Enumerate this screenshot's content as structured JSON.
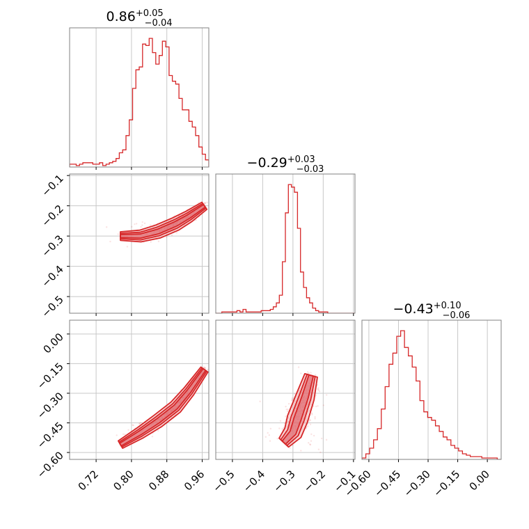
{
  "chart_data": {
    "type": "corner",
    "color": "#d62728",
    "fill_color": "#f2b6b8",
    "grid": true,
    "parameters": [
      {
        "median": "0.86",
        "plus": "+0.05",
        "minus": "−0.04",
        "range": [
          0.66,
          0.975
        ],
        "ticks": [
          0.72,
          0.8,
          0.88,
          0.96
        ],
        "tick_labels": [
          "0.72",
          "0.80",
          "0.88",
          "0.96"
        ]
      },
      {
        "median": "−0.29",
        "plus": "+0.03",
        "minus": "−0.03",
        "range": [
          -0.555,
          -0.095
        ],
        "ticks": [
          -0.5,
          -0.4,
          -0.3,
          -0.2,
          -0.1
        ],
        "tick_labels": [
          "−0.5",
          "−0.4",
          "−0.3",
          "−0.2",
          "−0.1"
        ]
      },
      {
        "median": "−0.43",
        "plus": "+0.10",
        "minus": "−0.06",
        "range": [
          -0.635,
          0.07
        ],
        "ticks": [
          -0.6,
          -0.45,
          -0.3,
          -0.15,
          0.0
        ],
        "tick_labels": [
          "−0.60",
          "−0.45",
          "−0.30",
          "−0.15",
          "0.00"
        ]
      }
    ],
    "histograms": [
      {
        "param": 0,
        "edges": [
          0.66,
          0.975
        ],
        "counts": [
          2,
          2,
          1,
          2,
          3,
          3,
          3,
          2,
          2,
          3,
          1,
          2,
          3,
          4,
          6,
          10,
          12,
          22,
          33,
          55,
          68,
          70,
          86,
          85,
          90,
          80,
          72,
          78,
          88,
          84,
          64,
          60,
          58,
          48,
          40,
          40,
          32,
          28,
          22,
          14,
          9,
          5
        ]
      },
      {
        "param": 1,
        "edges": [
          -0.555,
          -0.095
        ],
        "counts": [
          0,
          0,
          1,
          1,
          1,
          1,
          1,
          2,
          1,
          3,
          1,
          1,
          1,
          1,
          1,
          2,
          2,
          2,
          3,
          5,
          8,
          14,
          40,
          78,
          100,
          98,
          94,
          66,
          32,
          20,
          12,
          8,
          4,
          2,
          1,
          1,
          1,
          0,
          0,
          0,
          0,
          0,
          0,
          0,
          0,
          0
        ]
      },
      {
        "param": 2,
        "edges": [
          -0.635,
          0.07
        ],
        "counts": [
          1,
          4,
          8,
          14,
          22,
          36,
          52,
          68,
          76,
          88,
          92,
          80,
          74,
          66,
          56,
          42,
          34,
          30,
          28,
          24,
          20,
          16,
          14,
          10,
          8,
          6,
          4,
          3,
          2,
          2,
          2,
          1,
          1,
          1,
          1,
          0
        ]
      }
    ],
    "pairs": [
      {
        "x": 0,
        "y": 1,
        "ridge": [
          [
            0.775,
            -0.3
          ],
          [
            0.82,
            -0.3
          ],
          [
            0.86,
            -0.285
          ],
          [
            0.9,
            -0.26
          ],
          [
            0.93,
            -0.235
          ],
          [
            0.965,
            -0.2
          ]
        ],
        "width": 0.045
      },
      {
        "x": 0,
        "y": 2,
        "ridge": [
          [
            0.775,
            -0.56
          ],
          [
            0.82,
            -0.5
          ],
          [
            0.86,
            -0.44
          ],
          [
            0.9,
            -0.37
          ],
          [
            0.93,
            -0.29
          ],
          [
            0.965,
            -0.18
          ]
        ],
        "width": 0.035
      },
      {
        "x": 1,
        "y": 2,
        "ridge": [
          [
            -0.33,
            -0.55
          ],
          [
            -0.3,
            -0.5
          ],
          [
            -0.285,
            -0.43
          ],
          [
            -0.26,
            -0.32
          ],
          [
            -0.24,
            -0.21
          ]
        ],
        "width": 0.11
      }
    ]
  }
}
